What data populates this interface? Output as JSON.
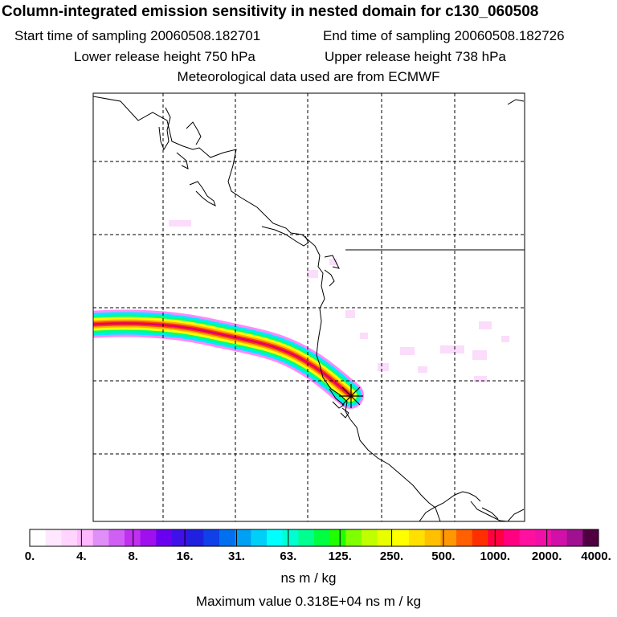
{
  "header": {
    "title": "Column-integrated emission sensitivity in nested domain for c130_060508",
    "start_time": "Start time of sampling 20060508.182701",
    "end_time": "End time of sampling 20060508.182726",
    "lower_height": "Lower release height  750 hPa",
    "upper_height": "Upper release height  738 hPa",
    "met_data": "Meteorological data used are from ECMWF"
  },
  "colorbar": {
    "tick_labels": [
      "0.",
      "4.",
      "8.",
      "16.",
      "31.",
      "63.",
      "125.",
      "250.",
      "500.",
      "1000.",
      "2000.",
      "4000."
    ],
    "colors": [
      "#ffffff",
      "#ffe8ff",
      "#ffd4ff",
      "#ffb8ff",
      "#e08ef8",
      "#d060f4",
      "#c030f0",
      "#a010ee",
      "#6a00f0",
      "#4010e8",
      "#2020e0",
      "#1040e8",
      "#0070f0",
      "#00a0f4",
      "#00d0f8",
      "#00ffff",
      "#00ffd0",
      "#00ff90",
      "#00ff40",
      "#20ff00",
      "#80ff00",
      "#c0ff00",
      "#e8ff00",
      "#ffff00",
      "#ffe000",
      "#ffc000",
      "#ff9800",
      "#ff6000",
      "#ff3000",
      "#ff0040",
      "#ff0080",
      "#ff10a0",
      "#f010a8",
      "#d010a8",
      "#a01090",
      "#500040"
    ],
    "units": "ns m / kg",
    "max_value": "Maximum value  0.318E+04 ns m / kg"
  },
  "map": {
    "plume_colors": [
      "#ff88ff",
      "#00e8ff",
      "#00ff80",
      "#ffff00",
      "#ffb000",
      "#ff4000",
      "#e00070"
    ],
    "release_marker": "x-marker"
  }
}
